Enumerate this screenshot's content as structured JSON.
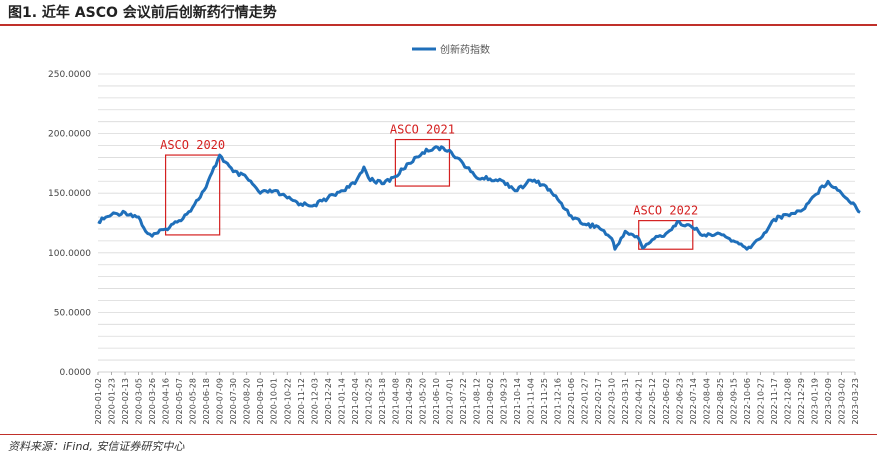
{
  "header": {
    "title": "图1. 近年 ASCO 会议前后创新药行情走势"
  },
  "footer": {
    "source": "资料来源：iFind, 安信证券研究中心"
  },
  "colors": {
    "series": "#1f6fba",
    "annotation": "#d42020",
    "rule": "#c0302a",
    "grid": "#d9d9d9"
  },
  "chart_data": {
    "type": "line",
    "title": "",
    "xlabel": "",
    "ylabel": "",
    "ylim": [
      0,
      250
    ],
    "y_ticks": [
      "0.0000",
      "50.0000",
      "100.0000",
      "150.0000",
      "200.0000",
      "250.0000"
    ],
    "y_tick_values": [
      0,
      50,
      100,
      150,
      200,
      250
    ],
    "grid": true,
    "legend": "top-center",
    "x_ticks": [
      "2020-01-02",
      "2020-01-23",
      "2020-02-13",
      "2020-03-05",
      "2020-03-26",
      "2020-04-16",
      "2020-05-07",
      "2020-05-28",
      "2020-06-18",
      "2020-07-09",
      "2020-07-30",
      "2020-08-20",
      "2020-09-10",
      "2020-10-01",
      "2020-10-22",
      "2020-11-12",
      "2020-12-03",
      "2020-12-24",
      "2021-01-14",
      "2021-02-04",
      "2021-02-25",
      "2021-03-18",
      "2021-04-08",
      "2021-04-29",
      "2021-05-20",
      "2021-06-10",
      "2021-07-01",
      "2021-07-22",
      "2021-08-12",
      "2021-09-02",
      "2021-09-23",
      "2021-10-14",
      "2021-11-04",
      "2021-11-25",
      "2021-12-16",
      "2022-01-06",
      "2022-01-27",
      "2022-02-17",
      "2022-03-10",
      "2022-03-31",
      "2022-04-21",
      "2022-05-12",
      "2022-06-02",
      "2022-06-23",
      "2022-07-14",
      "2022-08-04",
      "2022-08-25",
      "2022-09-15",
      "2022-10-06",
      "2022-10-27",
      "2022-11-17",
      "2022-12-08",
      "2022-12-29",
      "2023-01-19",
      "2023-02-09",
      "2023-03-02",
      "2023-03-23"
    ],
    "series": [
      {
        "name": "创新药指数",
        "x": [
          "2020-01-02",
          "2020-01-23",
          "2020-02-13",
          "2020-03-05",
          "2020-03-16",
          "2020-03-26",
          "2020-04-16",
          "2020-05-07",
          "2020-05-28",
          "2020-06-18",
          "2020-07-06",
          "2020-07-09",
          "2020-07-30",
          "2020-08-20",
          "2020-09-10",
          "2020-10-01",
          "2020-10-22",
          "2020-11-12",
          "2020-12-03",
          "2020-12-24",
          "2021-01-14",
          "2021-02-04",
          "2021-02-18",
          "2021-02-25",
          "2021-03-18",
          "2021-04-08",
          "2021-04-29",
          "2021-05-20",
          "2021-06-10",
          "2021-06-24",
          "2021-07-01",
          "2021-07-22",
          "2021-08-12",
          "2021-09-02",
          "2021-09-23",
          "2021-10-14",
          "2021-11-04",
          "2021-11-25",
          "2021-12-16",
          "2022-01-06",
          "2022-01-27",
          "2022-02-17",
          "2022-03-10",
          "2022-03-15",
          "2022-03-31",
          "2022-04-21",
          "2022-04-27",
          "2022-05-12",
          "2022-06-02",
          "2022-06-23",
          "2022-07-14",
          "2022-08-04",
          "2022-08-25",
          "2022-09-15",
          "2022-10-06",
          "2022-10-27",
          "2022-11-17",
          "2022-12-08",
          "2022-12-29",
          "2023-01-19",
          "2023-02-09",
          "2023-03-02",
          "2023-03-23",
          "2023-03-31"
        ],
        "values": [
          126,
          132,
          134,
          130,
          118,
          114,
          120,
          127,
          138,
          155,
          178,
          182,
          168,
          163,
          150,
          152,
          146,
          141,
          140,
          146,
          152,
          158,
          172,
          163,
          158,
          164,
          175,
          184,
          189,
          186,
          186,
          175,
          163,
          162,
          160,
          152,
          161,
          157,
          145,
          131,
          124,
          122,
          112,
          103,
          118,
          112,
          104,
          111,
          116,
          126,
          121,
          114,
          116,
          110,
          103,
          112,
          128,
          132,
          135,
          148,
          160,
          150,
          140,
          134
        ]
      }
    ],
    "annotations": [
      {
        "label": "ASCO 2020",
        "x_start": "2020-04-16",
        "x_end": "2020-07-09",
        "y_low": 115,
        "y_high": 182
      },
      {
        "label": "ASCO 2021",
        "x_start": "2021-04-08",
        "x_end": "2021-07-01",
        "y_low": 156,
        "y_high": 195
      },
      {
        "label": "ASCO 2022",
        "x_start": "2022-04-21",
        "x_end": "2022-07-14",
        "y_low": 103,
        "y_high": 127
      }
    ]
  }
}
